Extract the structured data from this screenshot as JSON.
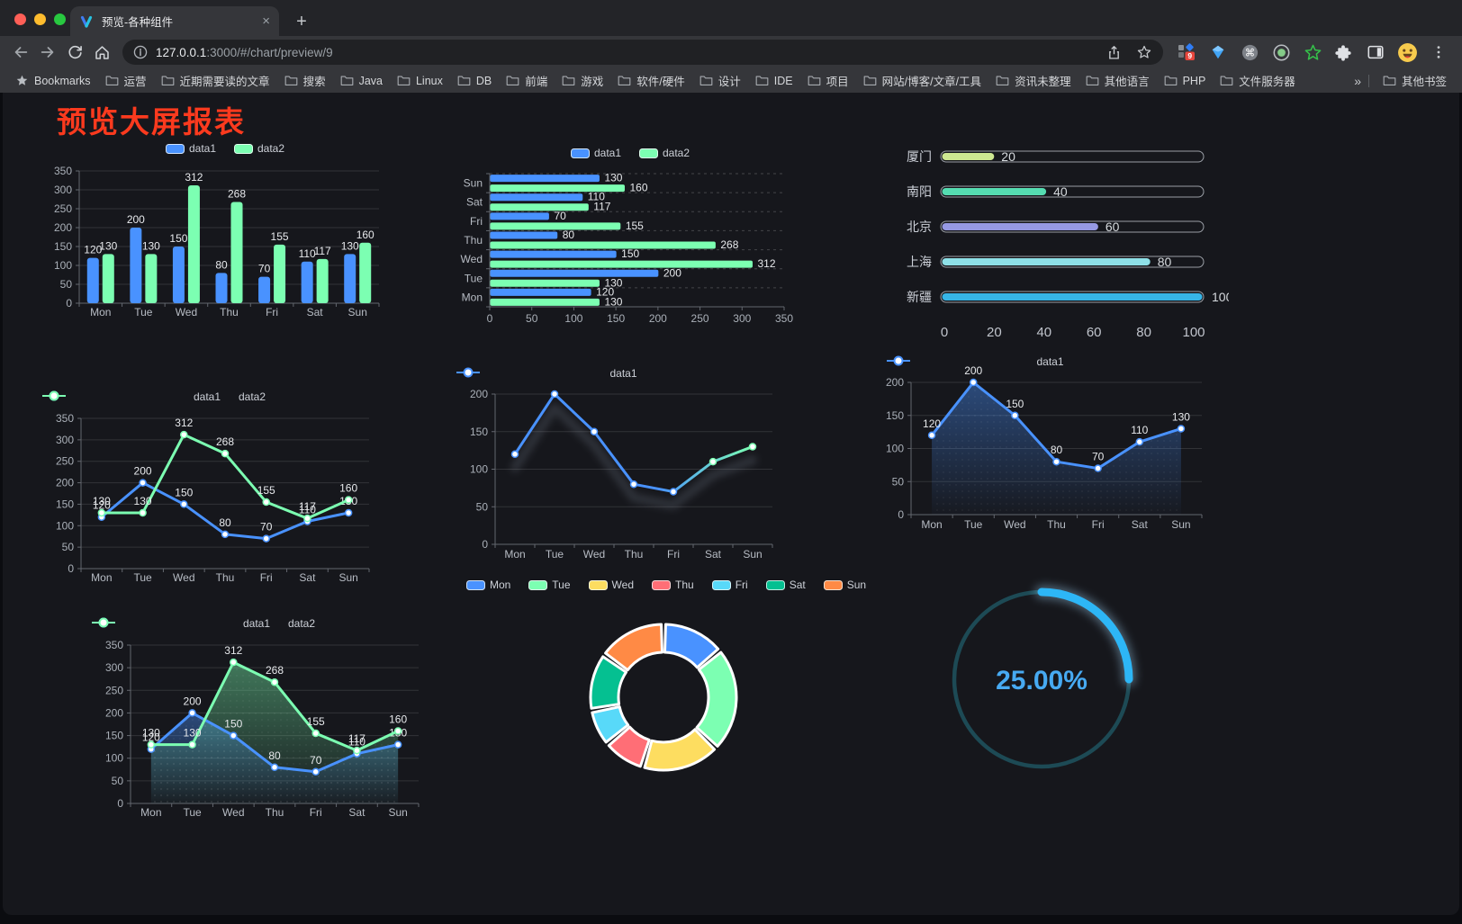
{
  "browser": {
    "traffic_lights": {
      "close": "#ff5f57",
      "minimize": "#febc2e",
      "zoom": "#28c840"
    },
    "tab": {
      "title": "预览-各种组件"
    },
    "address": {
      "host": "127.0.0.1",
      "rest": ":3000/#/chart/preview/9"
    },
    "extensions": {
      "badge": "9"
    },
    "bookmarks_bar": {
      "root_label": "Bookmarks",
      "items": [
        "运营",
        "近期需要读的文章",
        "搜索",
        "Java",
        "Linux",
        "DB",
        "前端",
        "游戏",
        "软件/硬件",
        "设计",
        "IDE",
        "项目",
        "网站/博客/文章/工具",
        "资讯未整理",
        "其他语言",
        "PHP",
        "文件服务器"
      ],
      "overflow": "»",
      "other_label": "其他书签"
    }
  },
  "page": {
    "title": "预览大屏报表",
    "title_color": "#fb3a1e"
  },
  "theme": {
    "blue": "#4992ff",
    "green": "#7cffb2"
  },
  "chart_data": [
    {
      "id": "bar-grouped",
      "type": "bar",
      "categories": [
        "Mon",
        "Tue",
        "Wed",
        "Thu",
        "Fri",
        "Sat",
        "Sun"
      ],
      "series": [
        {
          "name": "data1",
          "color": "#4992ff",
          "values": [
            120,
            200,
            150,
            80,
            70,
            110,
            130
          ]
        },
        {
          "name": "data2",
          "color": "#7cffb2",
          "values": [
            130,
            130,
            312,
            268,
            155,
            117,
            160
          ]
        }
      ],
      "ylim": [
        0,
        350
      ],
      "ytick": 50,
      "legend_position": "top",
      "show_labels": true
    },
    {
      "id": "bar-horizontal",
      "type": "hbar",
      "categories": [
        "Mon",
        "Tue",
        "Wed",
        "Thu",
        "Fri",
        "Sat",
        "Sun"
      ],
      "series": [
        {
          "name": "data1",
          "color": "#4992ff",
          "values": [
            120,
            200,
            150,
            80,
            70,
            110,
            130
          ]
        },
        {
          "name": "data2",
          "color": "#7cffb2",
          "values": [
            130,
            130,
            312,
            268,
            155,
            117,
            160
          ]
        }
      ],
      "xlim": [
        0,
        350
      ],
      "xtick": 50,
      "legend_position": "top",
      "show_labels": true
    },
    {
      "id": "progress-bars",
      "type": "progress",
      "max": 100,
      "axis_ticks": [
        0,
        20,
        40,
        60,
        80,
        100
      ],
      "items": [
        {
          "label": "厦门",
          "value": 20,
          "color": "#cde791"
        },
        {
          "label": "南阳",
          "value": 40,
          "color": "#55dcb1"
        },
        {
          "label": "北京",
          "value": 60,
          "color": "#9699e3"
        },
        {
          "label": "上海",
          "value": 80,
          "color": "#8ee0e7"
        },
        {
          "label": "新疆",
          "value": 100,
          "color": "#37b5e7"
        }
      ]
    },
    {
      "id": "line-grouped",
      "type": "line",
      "categories": [
        "Mon",
        "Tue",
        "Wed",
        "Thu",
        "Fri",
        "Sat",
        "Sun"
      ],
      "series": [
        {
          "name": "data1",
          "color": "#4992ff",
          "values": [
            120,
            200,
            150,
            80,
            70,
            110,
            130
          ]
        },
        {
          "name": "data2",
          "color": "#7cffb2",
          "values": [
            130,
            130,
            312,
            268,
            155,
            117,
            160
          ]
        }
      ],
      "ylim": [
        0,
        350
      ],
      "ytick": 50,
      "show_labels": true
    },
    {
      "id": "line-gradient",
      "type": "line",
      "categories": [
        "Mon",
        "Tue",
        "Wed",
        "Thu",
        "Fri",
        "Sat",
        "Sun"
      ],
      "series": [
        {
          "name": "data1",
          "color": "#4992ff",
          "color_end": "#7cffb2",
          "values": [
            120,
            200,
            150,
            80,
            70,
            110,
            130
          ]
        }
      ],
      "ylim": [
        0,
        200
      ],
      "ytick": 50,
      "show_labels": false,
      "shadow": true
    },
    {
      "id": "area-single",
      "type": "line",
      "categories": [
        "Mon",
        "Tue",
        "Wed",
        "Thu",
        "Fri",
        "Sat",
        "Sun"
      ],
      "series": [
        {
          "name": "data1",
          "color": "#4992ff",
          "values": [
            120,
            200,
            150,
            80,
            70,
            110,
            130
          ],
          "area": true
        }
      ],
      "ylim": [
        0,
        200
      ],
      "ytick": 50,
      "show_labels": true
    },
    {
      "id": "line-area-grouped",
      "type": "line",
      "categories": [
        "Mon",
        "Tue",
        "Wed",
        "Thu",
        "Fri",
        "Sat",
        "Sun"
      ],
      "series": [
        {
          "name": "data1",
          "color": "#4992ff",
          "values": [
            120,
            200,
            150,
            80,
            70,
            110,
            130
          ],
          "area": true
        },
        {
          "name": "data2",
          "color": "#7cffb2",
          "values": [
            130,
            130,
            312,
            268,
            155,
            117,
            160
          ],
          "area": true
        }
      ],
      "ylim": [
        0,
        350
      ],
      "ytick": 50,
      "show_labels": true
    },
    {
      "id": "donut",
      "type": "pie",
      "items": [
        {
          "label": "Mon",
          "value": 120,
          "color": "#4992ff"
        },
        {
          "label": "Tue",
          "value": 200,
          "color": "#7cffb2"
        },
        {
          "label": "Wed",
          "value": 150,
          "color": "#fddd60"
        },
        {
          "label": "Thu",
          "value": 80,
          "color": "#ff6e76"
        },
        {
          "label": "Fri",
          "value": 70,
          "color": "#58d9f9"
        },
        {
          "label": "Sat",
          "value": 110,
          "color": "#05c091"
        },
        {
          "label": "Sun",
          "value": 130,
          "color": "#ff8a45"
        }
      ],
      "border_color": "#ffffff"
    },
    {
      "id": "gauge",
      "type": "gauge",
      "value": 25,
      "display": "25.00%",
      "progress_color": "#2db6f6",
      "track_color": "#1d4a55",
      "text_color": "#47aaf2"
    }
  ]
}
